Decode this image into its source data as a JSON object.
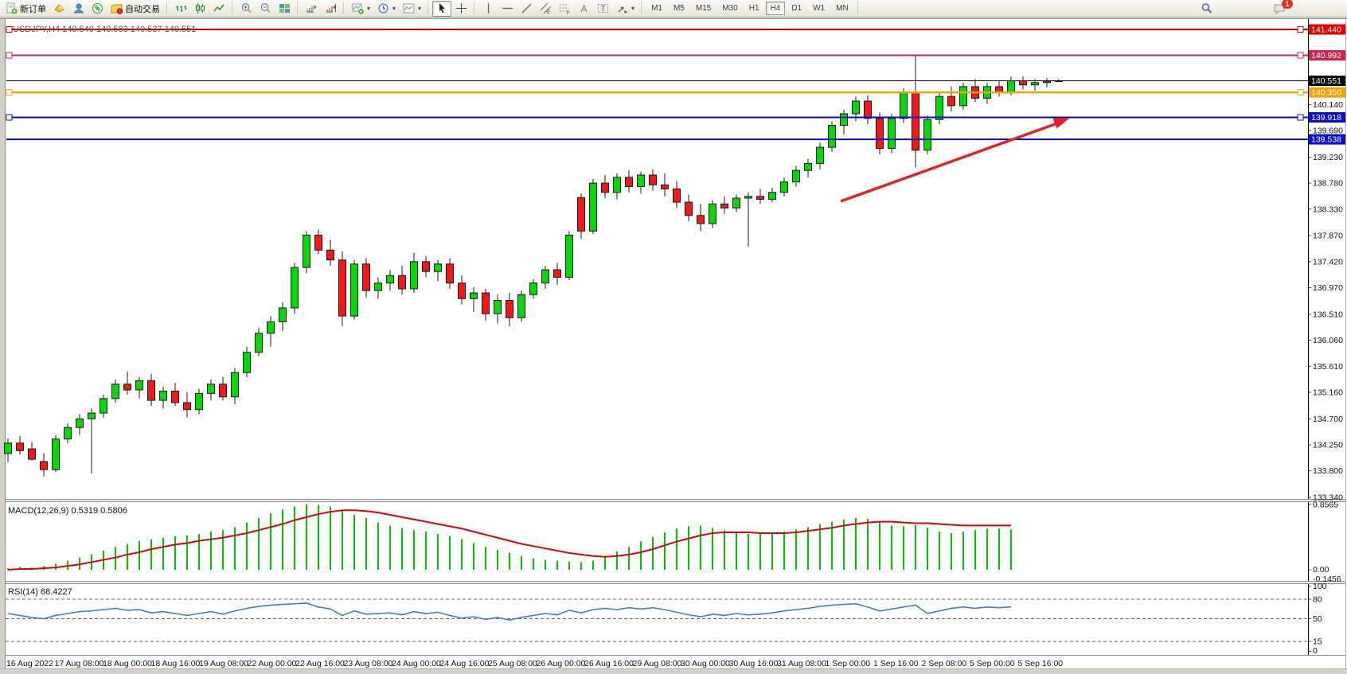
{
  "toolbar": {
    "new_order_label": "新订单",
    "autotrading_label": "自动交易",
    "timeframes": [
      "M1",
      "M5",
      "M15",
      "M30",
      "H1",
      "H4",
      "D1",
      "W1",
      "MN"
    ],
    "active_timeframe": "H4",
    "notification_count": "1"
  },
  "chart_data": {
    "type": "candlestick",
    "symbol": "USDJPY",
    "period": "H4",
    "title": "USDJPY,H4 140.540 140.583 140.537 140.551",
    "last_ohlc": {
      "open": 140.54,
      "high": 140.583,
      "low": 140.537,
      "close": 140.551
    },
    "colors": {
      "bull": "#00dc00",
      "bear": "#f31717",
      "macd_hist": "#00c400",
      "macd_signal": "#dd0202",
      "rsi_line": "#3c7fc8",
      "arrow": "#e52020"
    },
    "price_axis_ticks": [
      "140.140",
      "139.690",
      "139.230",
      "138.780",
      "138.330",
      "137.870",
      "137.420",
      "136.970",
      "136.510",
      "136.060",
      "135.610",
      "135.160",
      "134.700",
      "134.250",
      "133.800",
      "133.340"
    ],
    "price_lines": [
      {
        "price": 141.44,
        "label": "141.440",
        "color": "#e00000",
        "width": 2,
        "markers": true,
        "role": "resistance"
      },
      {
        "price": 140.992,
        "label": "140.992",
        "color": "#d2234e",
        "width": 2,
        "markers": true,
        "role": "resistance"
      },
      {
        "price": 140.551,
        "label": "140.551",
        "color": "#000000",
        "width": 1,
        "markers": false,
        "role": "bid"
      },
      {
        "price": 140.35,
        "label": "140.350",
        "color": "#f7a200",
        "width": 2.5,
        "markers": true,
        "role": "level"
      },
      {
        "price": 139.918,
        "label": "139.918",
        "color": "#0a0ad2",
        "width": 2,
        "markers": true,
        "role": "support"
      },
      {
        "price": 139.538,
        "label": "139.538",
        "color": "#0a0ad2",
        "width": 2,
        "markers": false,
        "role": "support"
      }
    ],
    "candles": [
      [
        134.1,
        134.36,
        133.95,
        134.28
      ],
      [
        134.28,
        134.4,
        134.08,
        134.15
      ],
      [
        134.18,
        134.3,
        133.98,
        134.0
      ],
      [
        133.96,
        134.1,
        133.7,
        133.82
      ],
      [
        133.82,
        134.42,
        133.78,
        134.35
      ],
      [
        134.35,
        134.62,
        134.28,
        134.55
      ],
      [
        134.55,
        134.78,
        134.42,
        134.7
      ],
      [
        134.7,
        134.88,
        133.75,
        134.8
      ],
      [
        134.8,
        135.12,
        134.72,
        135.05
      ],
      [
        135.05,
        135.38,
        134.98,
        135.3
      ],
      [
        135.3,
        135.52,
        135.12,
        135.2
      ],
      [
        135.2,
        135.42,
        135.05,
        135.36
      ],
      [
        135.36,
        135.48,
        134.92,
        135.02
      ],
      [
        135.02,
        135.26,
        134.88,
        135.18
      ],
      [
        135.18,
        135.32,
        134.92,
        134.98
      ],
      [
        134.98,
        135.16,
        134.72,
        134.86
      ],
      [
        134.86,
        135.22,
        134.78,
        135.14
      ],
      [
        135.14,
        135.38,
        135.02,
        135.3
      ],
      [
        135.3,
        135.42,
        135.02,
        135.08
      ],
      [
        135.08,
        135.58,
        134.95,
        135.5
      ],
      [
        135.5,
        135.95,
        135.42,
        135.85
      ],
      [
        135.85,
        136.28,
        135.78,
        136.18
      ],
      [
        136.18,
        136.48,
        135.95,
        136.38
      ],
      [
        136.38,
        136.72,
        136.22,
        136.62
      ],
      [
        136.62,
        137.4,
        136.52,
        137.32
      ],
      [
        137.32,
        137.95,
        137.22,
        137.88
      ],
      [
        137.88,
        137.98,
        137.55,
        137.62
      ],
      [
        137.62,
        137.8,
        137.35,
        137.45
      ],
      [
        137.45,
        137.6,
        136.3,
        136.48
      ],
      [
        136.48,
        137.45,
        136.42,
        137.38
      ],
      [
        137.38,
        137.48,
        136.8,
        136.92
      ],
      [
        136.92,
        137.15,
        136.78,
        137.05
      ],
      [
        137.05,
        137.28,
        136.92,
        137.18
      ],
      [
        137.18,
        137.35,
        136.85,
        136.95
      ],
      [
        136.95,
        137.58,
        136.88,
        137.42
      ],
      [
        137.42,
        137.52,
        137.15,
        137.25
      ],
      [
        137.25,
        137.45,
        137.08,
        137.38
      ],
      [
        137.38,
        137.48,
        136.95,
        137.05
      ],
      [
        137.05,
        137.18,
        136.68,
        136.78
      ],
      [
        136.78,
        136.98,
        136.55,
        136.88
      ],
      [
        136.88,
        136.95,
        136.4,
        136.52
      ],
      [
        136.52,
        136.85,
        136.35,
        136.75
      ],
      [
        136.75,
        136.88,
        136.3,
        136.45
      ],
      [
        136.45,
        136.92,
        136.38,
        136.85
      ],
      [
        136.85,
        137.12,
        136.78,
        137.05
      ],
      [
        137.05,
        137.35,
        136.95,
        137.28
      ],
      [
        137.28,
        137.4,
        137.02,
        137.15
      ],
      [
        137.15,
        137.95,
        137.1,
        137.88
      ],
      [
        138.53,
        138.6,
        137.82,
        137.95
      ],
      [
        137.95,
        138.85,
        137.9,
        138.78
      ],
      [
        138.78,
        138.92,
        138.52,
        138.62
      ],
      [
        138.62,
        138.95,
        138.5,
        138.88
      ],
      [
        138.88,
        139.0,
        138.62,
        138.72
      ],
      [
        138.72,
        138.98,
        138.6,
        138.92
      ],
      [
        138.92,
        139.02,
        138.65,
        138.75
      ],
      [
        138.75,
        138.95,
        138.55,
        138.68
      ],
      [
        138.68,
        138.82,
        138.35,
        138.45
      ],
      [
        138.45,
        138.58,
        138.12,
        138.22
      ],
      [
        138.22,
        138.42,
        137.95,
        138.08
      ],
      [
        138.08,
        138.48,
        138.0,
        138.42
      ],
      [
        138.42,
        138.55,
        138.25,
        138.35
      ],
      [
        138.35,
        138.58,
        138.28,
        138.52
      ],
      [
        138.52,
        138.62,
        137.68,
        138.55
      ],
      [
        138.55,
        138.68,
        138.42,
        138.5
      ],
      [
        138.5,
        138.7,
        138.45,
        138.62
      ],
      [
        138.62,
        138.88,
        138.55,
        138.8
      ],
      [
        138.8,
        139.08,
        138.72,
        139.0
      ],
      [
        139.0,
        139.2,
        138.88,
        139.12
      ],
      [
        139.12,
        139.48,
        139.02,
        139.4
      ],
      [
        139.4,
        139.85,
        139.32,
        139.78
      ],
      [
        139.78,
        140.05,
        139.62,
        139.98
      ],
      [
        139.98,
        140.28,
        139.85,
        140.2
      ],
      [
        140.2,
        140.3,
        139.8,
        139.9
      ],
      [
        139.9,
        140.0,
        139.28,
        139.38
      ],
      [
        139.38,
        139.98,
        139.3,
        139.9
      ],
      [
        139.9,
        140.42,
        139.82,
        140.35
      ],
      [
        140.35,
        140.99,
        139.05,
        139.35
      ],
      [
        139.35,
        139.95,
        139.28,
        139.88
      ],
      [
        139.88,
        140.35,
        139.8,
        140.28
      ],
      [
        140.28,
        140.45,
        140.02,
        140.12
      ],
      [
        140.12,
        140.52,
        140.05,
        140.45
      ],
      [
        140.45,
        140.58,
        140.18,
        140.25
      ],
      [
        140.25,
        140.52,
        140.15,
        140.45
      ],
      [
        140.45,
        140.55,
        140.28,
        140.35
      ],
      [
        140.35,
        140.62,
        140.3,
        140.55
      ],
      [
        140.55,
        140.63,
        140.4,
        140.48
      ],
      [
        140.48,
        140.58,
        140.38,
        140.52
      ],
      [
        140.52,
        140.6,
        140.44,
        140.54
      ],
      [
        140.54,
        140.583,
        140.537,
        140.551
      ]
    ],
    "date_labels": [
      "16 Aug 2022",
      "17 Aug 08:00",
      "18 Aug 00:00",
      "18 Aug 16:00",
      "19 Aug 08:00",
      "22 Aug 00:00",
      "22 Aug 16:00",
      "23 Aug 08:00",
      "24 Aug 00:00",
      "24 Aug 16:00",
      "25 Aug 08:00",
      "26 Aug 00:00",
      "26 Aug 16:00",
      "29 Aug 08:00",
      "30 Aug 00:00",
      "30 Aug 16:00",
      "31 Aug 08:00",
      "1 Sep 00:00",
      "1 Sep 16:00",
      "2 Sep 08:00",
      "5 Sep 00:00",
      "5 Sep 16:00"
    ],
    "macd": {
      "label": "MACD(12,26,9) 0.5319 0.5806",
      "value_main": 0.5319,
      "value_signal": 0.5806,
      "axis_max_label": "0.8565",
      "axis_zero_label": "0.00",
      "axis_min_label": "-0.1456",
      "histogram": [
        0.02,
        0.04,
        0.03,
        0.05,
        0.08,
        0.12,
        0.16,
        0.2,
        0.25,
        0.3,
        0.34,
        0.38,
        0.4,
        0.42,
        0.44,
        0.45,
        0.47,
        0.5,
        0.52,
        0.56,
        0.62,
        0.68,
        0.74,
        0.79,
        0.83,
        0.86,
        0.85,
        0.83,
        0.78,
        0.72,
        0.68,
        0.62,
        0.58,
        0.55,
        0.52,
        0.5,
        0.47,
        0.44,
        0.4,
        0.35,
        0.3,
        0.26,
        0.22,
        0.18,
        0.15,
        0.13,
        0.12,
        0.11,
        0.1,
        0.12,
        0.18,
        0.24,
        0.3,
        0.37,
        0.43,
        0.49,
        0.54,
        0.57,
        0.58,
        0.55,
        0.52,
        0.49,
        0.47,
        0.47,
        0.48,
        0.5,
        0.53,
        0.56,
        0.6,
        0.63,
        0.66,
        0.68,
        0.67,
        0.62,
        0.58,
        0.57,
        0.59,
        0.55,
        0.5,
        0.48,
        0.5,
        0.52,
        0.54,
        0.54,
        0.53
      ],
      "signal": [
        0.0,
        0.01,
        0.01,
        0.02,
        0.03,
        0.05,
        0.07,
        0.1,
        0.13,
        0.16,
        0.2,
        0.23,
        0.27,
        0.3,
        0.33,
        0.35,
        0.38,
        0.4,
        0.42,
        0.45,
        0.48,
        0.52,
        0.56,
        0.6,
        0.65,
        0.69,
        0.73,
        0.76,
        0.78,
        0.78,
        0.77,
        0.75,
        0.72,
        0.69,
        0.66,
        0.63,
        0.6,
        0.57,
        0.54,
        0.5,
        0.46,
        0.42,
        0.38,
        0.34,
        0.31,
        0.28,
        0.25,
        0.22,
        0.2,
        0.18,
        0.17,
        0.18,
        0.2,
        0.23,
        0.27,
        0.32,
        0.37,
        0.41,
        0.45,
        0.48,
        0.49,
        0.49,
        0.49,
        0.48,
        0.48,
        0.48,
        0.49,
        0.51,
        0.53,
        0.55,
        0.58,
        0.6,
        0.62,
        0.63,
        0.63,
        0.62,
        0.61,
        0.61,
        0.6,
        0.59,
        0.58,
        0.58,
        0.58,
        0.58,
        0.58
      ]
    },
    "rsi": {
      "label": "RSI(14) 68.4227",
      "value": 68.4227,
      "axis_labels": [
        "100",
        "80",
        "50",
        "15",
        "0"
      ],
      "dashed_levels": [
        80,
        50,
        15
      ],
      "values": [
        58,
        55,
        52,
        50,
        55,
        58,
        61,
        62,
        64,
        66,
        63,
        64,
        59,
        61,
        58,
        55,
        58,
        61,
        57,
        62,
        66,
        69,
        71,
        72,
        73,
        74,
        68,
        65,
        55,
        62,
        57,
        58,
        59,
        56,
        61,
        58,
        60,
        55,
        51,
        53,
        49,
        52,
        48,
        52,
        55,
        58,
        56,
        63,
        59,
        64,
        66,
        64,
        67,
        65,
        67,
        64,
        60,
        56,
        53,
        57,
        55,
        58,
        56,
        57,
        59,
        62,
        64,
        66,
        69,
        71,
        72,
        73,
        68,
        62,
        65,
        68,
        71,
        58,
        62,
        66,
        68,
        66,
        68,
        67,
        68.4
      ]
    },
    "annotation_arrow": {
      "color": "#e52020",
      "direction": "up-right",
      "points_to_price": 139.918
    }
  }
}
